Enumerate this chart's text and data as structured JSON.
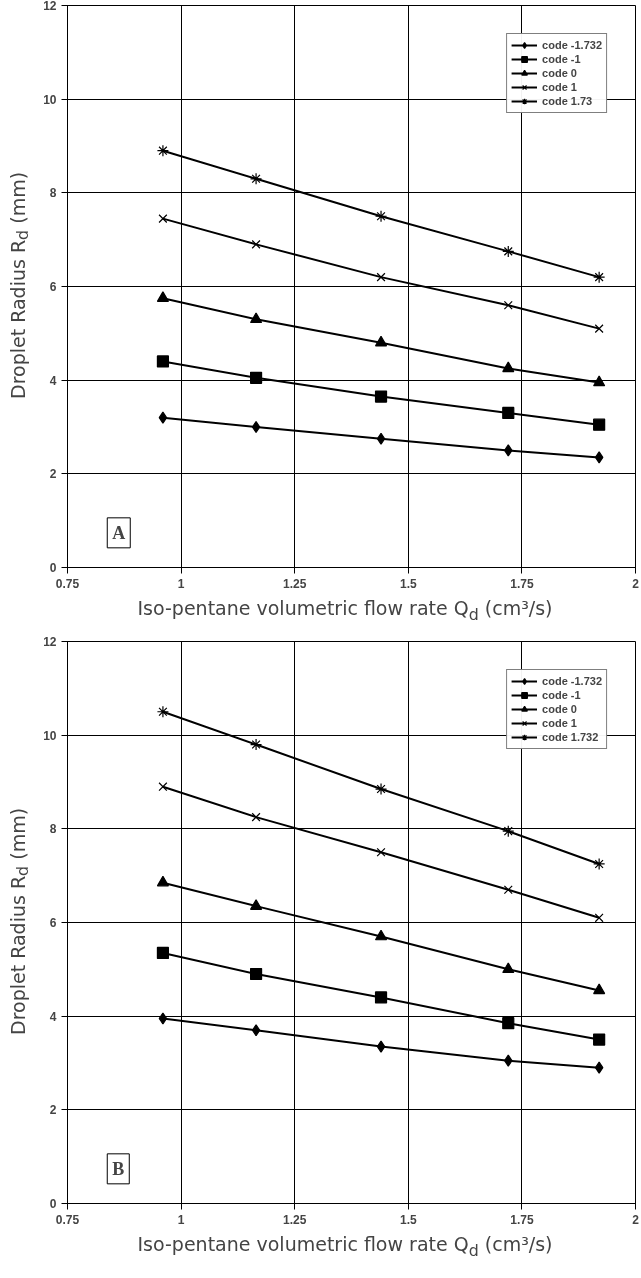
{
  "chart_data": [
    {
      "type": "line",
      "xlabel": "Iso-pentane volumetric flow rate Q$_{d}$ (cm³/s)",
      "ylabel": "Droplet  Radius R$_{d}$ (mm)",
      "annotations": [
        "A"
      ],
      "x": [
        0.96,
        1.165,
        1.44,
        1.72,
        1.92
      ],
      "xlim": [
        0.75,
        2
      ],
      "xticks": [
        0.75,
        1,
        1.25,
        1.5,
        1.75,
        2
      ],
      "ylim": [
        0,
        12
      ],
      "yticks": [
        0,
        2,
        4,
        6,
        8,
        10,
        12
      ],
      "grid": true,
      "legend": "top right",
      "line_style": "solid",
      "series": [
        {
          "name": "code -1.732",
          "color": "#000000",
          "marker": "diamond",
          "values": [
            3.2,
            3.0,
            2.75,
            2.5,
            2.35
          ]
        },
        {
          "name": "code -1",
          "color": "#000000",
          "marker": "square",
          "values": [
            4.4,
            4.05,
            3.65,
            3.3,
            3.05
          ]
        },
        {
          "name": "code 0",
          "color": "#000000",
          "marker": "triangle",
          "values": [
            5.75,
            5.3,
            4.8,
            4.25,
            3.95
          ]
        },
        {
          "name": "code 1",
          "color": "#000000",
          "marker": "x",
          "values": [
            7.45,
            6.9,
            6.2,
            5.6,
            5.1
          ]
        },
        {
          "name": "code 1.73",
          "color": "#000000",
          "marker": "cross",
          "values": [
            8.9,
            8.3,
            7.5,
            6.75,
            6.2
          ]
        }
      ]
    },
    {
      "type": "line",
      "xlabel": "Iso-pentane volumetric flow rate Q$_{d}$ (cm³/s)",
      "ylabel": "Droplet  Radius R$_{d}$ (mm)",
      "annotations": [
        "B"
      ],
      "x": [
        0.96,
        1.165,
        1.44,
        1.72,
        1.92
      ],
      "xlim": [
        0.75,
        2
      ],
      "xticks": [
        0.75,
        1,
        1.25,
        1.5,
        1.75,
        2
      ],
      "ylim": [
        0,
        12
      ],
      "yticks": [
        0,
        2,
        4,
        6,
        8,
        10,
        12
      ],
      "grid": true,
      "legend": "top right",
      "line_style": "solid",
      "series": [
        {
          "name": "code -1.732",
          "color": "#000000",
          "marker": "diamond",
          "values": [
            3.95,
            3.7,
            3.35,
            3.05,
            2.9
          ]
        },
        {
          "name": "code -1",
          "color": "#000000",
          "marker": "square",
          "values": [
            5.35,
            4.9,
            4.4,
            3.85,
            3.5
          ]
        },
        {
          "name": "code 0",
          "color": "#000000",
          "marker": "triangle",
          "values": [
            6.85,
            6.35,
            5.7,
            5.0,
            4.55
          ]
        },
        {
          "name": "code 1",
          "color": "#000000",
          "marker": "x",
          "values": [
            8.9,
            8.25,
            7.5,
            6.7,
            6.1
          ]
        },
        {
          "name": "code 1.732",
          "color": "#000000",
          "marker": "cross",
          "values": [
            10.5,
            9.8,
            8.85,
            7.95,
            7.25
          ]
        }
      ]
    }
  ]
}
